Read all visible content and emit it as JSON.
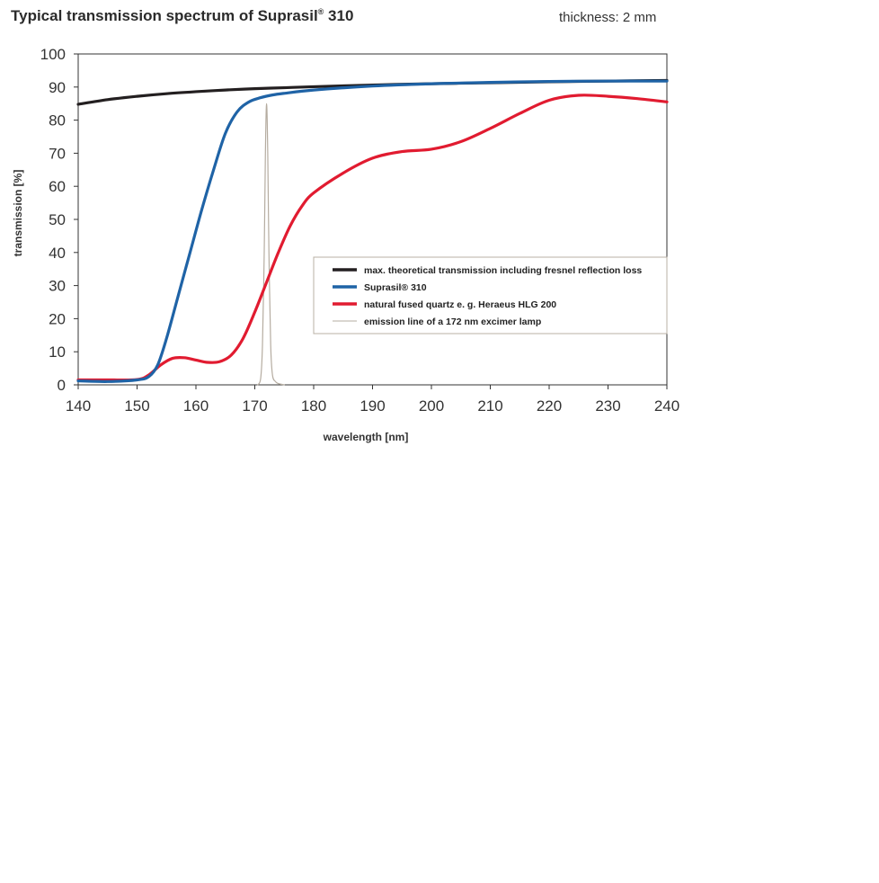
{
  "header": {
    "title_main": "Typical transmission spectrum of Suprasil",
    "title_reg": "®",
    "title_num": " 310",
    "thickness": "thickness: 2 mm"
  },
  "chart_data": {
    "type": "line",
    "xlabel": "wavelength [nm]",
    "ylabel": "transmission [%]",
    "xlim": [
      140,
      240
    ],
    "ylim": [
      0,
      100
    ],
    "xticks": [
      140,
      150,
      160,
      170,
      180,
      190,
      200,
      210,
      220,
      230,
      240
    ],
    "yticks": [
      0,
      10,
      20,
      30,
      40,
      50,
      60,
      70,
      80,
      90,
      100
    ],
    "grid": false,
    "legend_position": "center-right",
    "series": [
      {
        "name": "max. theoretical transmission including fresnel reflection loss",
        "color": "#231f20",
        "x": [
          140,
          145,
          150,
          155,
          160,
          165,
          170,
          175,
          180,
          190,
          200,
          210,
          220,
          230,
          240
        ],
        "y": [
          84.8,
          86.2,
          87.2,
          88.0,
          88.6,
          89.1,
          89.5,
          89.8,
          90.1,
          90.6,
          91.0,
          91.3,
          91.6,
          91.8,
          92.0
        ]
      },
      {
        "name": "Suprasil® 310",
        "color": "#1f63a6",
        "x": [
          140,
          145,
          150,
          152,
          153.5,
          155,
          157,
          159,
          161,
          163,
          165,
          167,
          169,
          171,
          173,
          175,
          180,
          190,
          200,
          210,
          220,
          230,
          240
        ],
        "y": [
          1.2,
          1.0,
          1.5,
          2.5,
          6,
          14,
          27,
          40,
          53,
          65,
          76,
          82.5,
          85.5,
          86.8,
          87.6,
          88.1,
          89.1,
          90.3,
          91.0,
          91.4,
          91.7,
          91.8,
          91.8
        ]
      },
      {
        "name": "natural fused quartz e. g. Heraeus HLG 200",
        "color": "#e11b30",
        "x": [
          140,
          145,
          150,
          152,
          154,
          156,
          158,
          160,
          162,
          164,
          166,
          168,
          170,
          172,
          174,
          176,
          178,
          180,
          185,
          190,
          195,
          200,
          205,
          210,
          215,
          220,
          225,
          230,
          235,
          240
        ],
        "y": [
          1.5,
          1.5,
          1.6,
          3,
          6,
          8,
          8.2,
          7.5,
          6.8,
          7,
          9,
          14,
          22,
          31,
          40,
          48,
          54,
          58,
          64,
          68.5,
          70.5,
          71.2,
          73.5,
          77.5,
          82,
          86,
          87.5,
          87.2,
          86.5,
          85.5
        ]
      },
      {
        "name": "emission line of a 172 nm excimer lamp",
        "color": "#b5aca0",
        "x": [
          170.5,
          171,
          171.3,
          171.6,
          171.8,
          172,
          172.2,
          172.4,
          172.7,
          173,
          173.5,
          174,
          175
        ],
        "y": [
          0,
          2,
          12,
          40,
          70,
          85,
          70,
          40,
          12,
          3,
          1,
          0.4,
          0
        ]
      }
    ]
  }
}
